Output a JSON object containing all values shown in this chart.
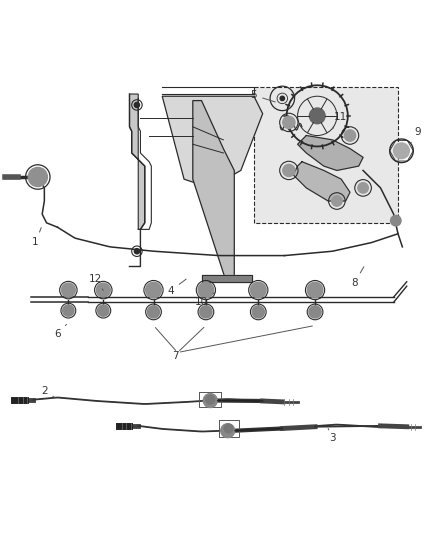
{
  "bg_color": "#ffffff",
  "line_color": "#2a2a2a",
  "gray_color": "#888888",
  "mid_gray": "#aaaaaa",
  "light_gray": "#cccccc",
  "figsize": [
    4.38,
    5.33
  ],
  "dpi": 100,
  "label_fs": 7.5,
  "label_color": "#333333",
  "ann_line_color": "#555555",
  "labels": {
    "1": [
      0.08,
      0.555,
      0.115,
      0.595
    ],
    "2": [
      0.1,
      0.175,
      0.13,
      0.185
    ],
    "3": [
      0.75,
      0.108,
      0.73,
      0.122
    ],
    "4": [
      0.395,
      0.445,
      0.42,
      0.46
    ],
    "5": [
      0.585,
      0.895,
      0.62,
      0.875
    ],
    "6": [
      0.135,
      0.345,
      0.165,
      0.368
    ],
    "7": [
      0.4,
      0.3,
      0.42,
      0.345
    ],
    "8": [
      0.8,
      0.465,
      0.82,
      0.495
    ],
    "9": [
      0.945,
      0.8,
      0.93,
      0.775
    ],
    "10": [
      0.465,
      0.42,
      0.49,
      0.44
    ],
    "11": [
      0.775,
      0.835,
      0.77,
      0.81
    ],
    "12": [
      0.225,
      0.465,
      0.235,
      0.435
    ]
  }
}
